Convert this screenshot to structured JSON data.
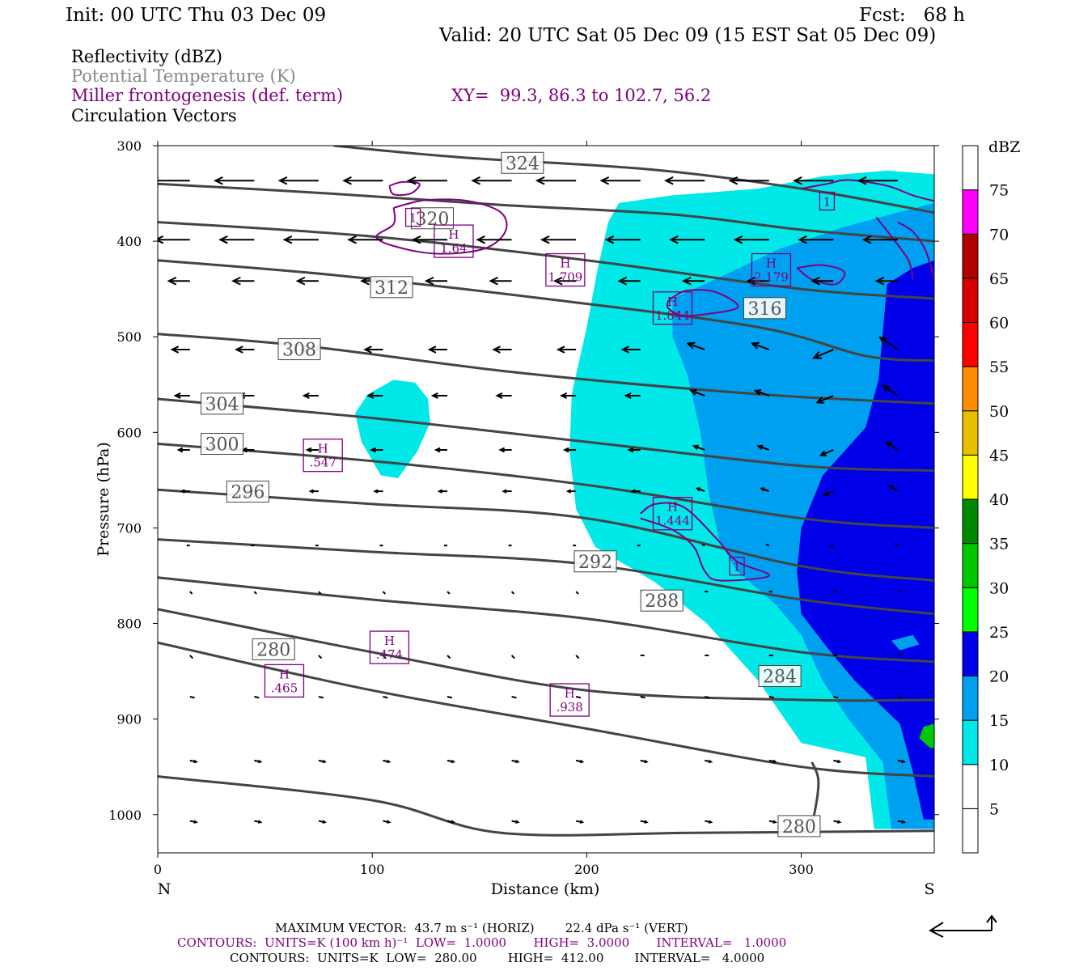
{
  "header": {
    "init": "Init: 00 UTC Thu 03 Dec 09",
    "fcst": "Fcst:   68 h",
    "valid": "Valid: 20 UTC Sat 05 Dec 09 (15 EST Sat 05 Dec 09)"
  },
  "legend": {
    "reflectivity": "Reflectivity (dBZ)",
    "theta": "Potential Temperature (K)",
    "miller": "Miller frontogenesis (def. term)",
    "xy": "XY=  99.3, 86.3 to 102.7, 56.2",
    "vectors": "Circulation Vectors"
  },
  "colors": {
    "miller": "#800080",
    "theta_gray": "#888888",
    "contour": "#444444"
  },
  "chart_data": {
    "type": "cross-section",
    "xlabel": "Distance (km)",
    "ylabel": "Pressure (hPa)",
    "x_ticks": [
      0,
      100,
      200,
      300
    ],
    "y_ticks": [
      300,
      400,
      500,
      600,
      700,
      800,
      900,
      1000
    ],
    "xlim": [
      0,
      362
    ],
    "ylim": [
      300,
      1040
    ],
    "left_label": "N",
    "right_label": "S",
    "colorbar": {
      "title": "dBZ",
      "ticks": [
        5,
        10,
        15,
        20,
        25,
        30,
        35,
        40,
        45,
        50,
        55,
        60,
        65,
        70,
        75
      ],
      "colors": [
        "#ffffff",
        "#00e8e8",
        "#00a0f0",
        "#0000e8",
        "#00ff00",
        "#00c800",
        "#008800",
        "#ffff00",
        "#e8c000",
        "#ff8c00",
        "#ff0000",
        "#d80000",
        "#b00000",
        "#ff00ff",
        "#9955c8"
      ]
    },
    "theta_contours": [
      {
        "label": "324",
        "pts": [
          [
            82,
            300
          ],
          [
            140,
            312
          ],
          [
            230,
            325
          ],
          [
            300,
            345
          ],
          [
            362,
            370
          ]
        ]
      },
      {
        "label": "320",
        "pts": [
          [
            0,
            340
          ],
          [
            80,
            350
          ],
          [
            160,
            362
          ],
          [
            240,
            372
          ],
          [
            300,
            388
          ],
          [
            362,
            400
          ]
        ]
      },
      {
        "label": "316",
        "pts": [
          [
            0,
            380
          ],
          [
            100,
            395
          ],
          [
            200,
            420
          ],
          [
            300,
            450
          ],
          [
            362,
            460
          ]
        ]
      },
      {
        "label": "312",
        "pts": [
          [
            0,
            420
          ],
          [
            80,
            435
          ],
          [
            180,
            460
          ],
          [
            280,
            490
          ],
          [
            330,
            520
          ],
          [
            362,
            525
          ]
        ]
      },
      {
        "label": "308",
        "pts": [
          [
            0,
            497
          ],
          [
            70,
            510
          ],
          [
            170,
            538
          ],
          [
            280,
            560
          ],
          [
            362,
            570
          ]
        ]
      },
      {
        "label": "304",
        "pts": [
          [
            0,
            565
          ],
          [
            100,
            585
          ],
          [
            200,
            610
          ],
          [
            300,
            635
          ],
          [
            362,
            640
          ]
        ]
      },
      {
        "label": "300",
        "pts": [
          [
            0,
            612
          ],
          [
            100,
            630
          ],
          [
            200,
            655
          ],
          [
            300,
            690
          ],
          [
            362,
            700
          ]
        ]
      },
      {
        "label": "296",
        "pts": [
          [
            0,
            660
          ],
          [
            100,
            675
          ],
          [
            200,
            690
          ],
          [
            300,
            740
          ],
          [
            362,
            755
          ]
        ]
      },
      {
        "label": "292",
        "pts": [
          [
            0,
            712
          ],
          [
            100,
            725
          ],
          [
            200,
            738
          ],
          [
            300,
            775
          ],
          [
            362,
            790
          ]
        ]
      },
      {
        "label": "288",
        "pts": [
          [
            0,
            752
          ],
          [
            100,
            775
          ],
          [
            200,
            795
          ],
          [
            300,
            830
          ],
          [
            362,
            840
          ]
        ]
      },
      {
        "label": "284",
        "pts": [
          [
            0,
            785
          ],
          [
            100,
            830
          ],
          [
            200,
            870
          ],
          [
            300,
            880
          ],
          [
            362,
            880
          ]
        ]
      },
      {
        "label": "280",
        "pts": [
          [
            0,
            820
          ],
          [
            100,
            870
          ],
          [
            200,
            910
          ],
          [
            300,
            950
          ],
          [
            362,
            960
          ]
        ]
      },
      {
        "label": "280",
        "pts": [
          [
            0,
            960
          ],
          [
            100,
            985
          ],
          [
            160,
            1019
          ],
          [
            250,
            1019
          ],
          [
            362,
            1017
          ]
        ]
      }
    ],
    "frontogenesis_maxima": [
      {
        "label": "H",
        "value": "1.64"
      },
      {
        "label": "H",
        "value": "1.709"
      },
      {
        "label": "H",
        "value": "1.844"
      },
      {
        "label": "H",
        "value": "2.179"
      },
      {
        "label": "H",
        "value": ".547"
      },
      {
        "label": "H",
        "value": "1.444"
      },
      {
        "label": "H",
        "value": ".474"
      },
      {
        "label": "H",
        "value": ".465"
      },
      {
        "label": "H",
        "value": ".938"
      },
      {
        "label": "1",
        "value": ""
      },
      {
        "label": "1",
        "value": ""
      },
      {
        "label": "1",
        "value": ""
      }
    ]
  },
  "footer": {
    "max_vector": "MAXIMUM VECTOR:  43.7 m s⁻¹ (HORIZ)        22.4 dPa s⁻¹ (VERT)",
    "contours1": "CONTOURS:  UNITS=K (100 km h)⁻¹  LOW=  1.0000       HIGH=  3.0000       INTERVAL=   1.0000",
    "contours2": "CONTOURS:  UNITS=K  LOW=  280.00        HIGH=  412.00        INTERVAL=   4.0000"
  }
}
